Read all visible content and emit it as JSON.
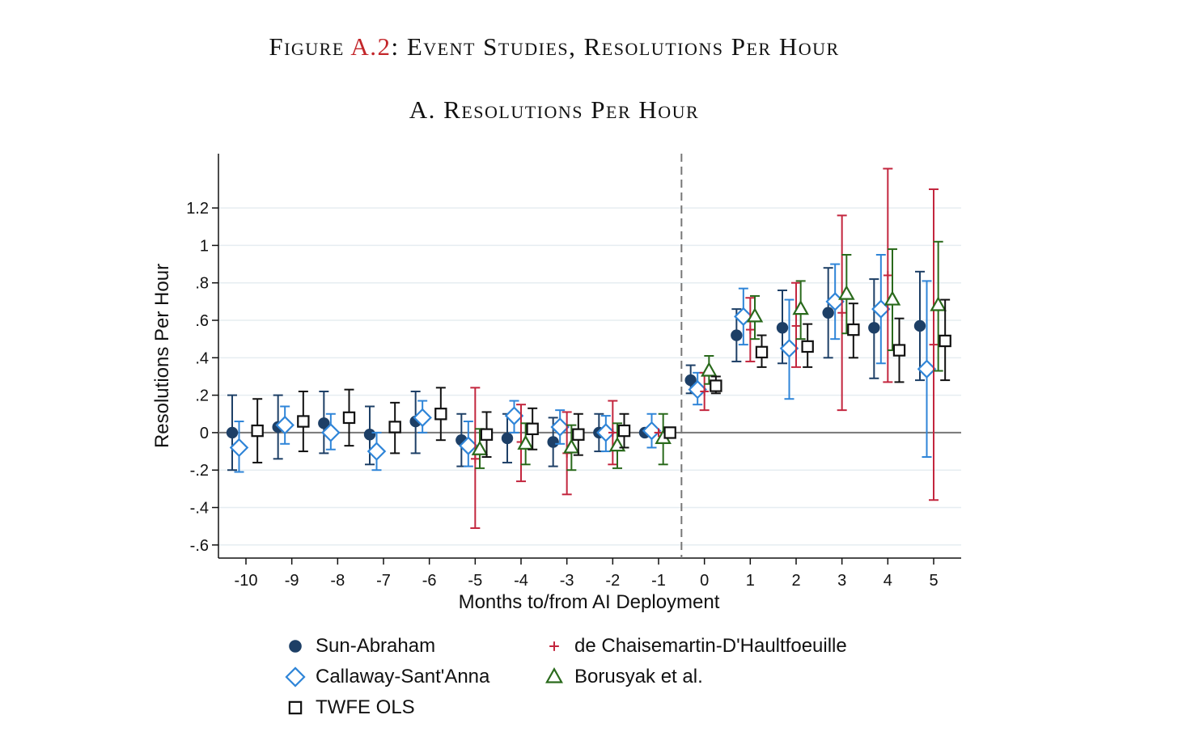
{
  "figure": {
    "prefix": "Figure ",
    "number": "A.2",
    "suffix": ": Event Studies, Resolutions Per Hour",
    "panel_title": "A. Resolutions Per Hour"
  },
  "chart_data": {
    "type": "scatter",
    "xlabel": "Months to/from AI Deployment",
    "ylabel": "Resolutions Per Hour",
    "x_ticks": [
      -10,
      -9,
      -8,
      -7,
      -6,
      -5,
      -4,
      -3,
      -2,
      -1,
      0,
      1,
      2,
      3,
      4,
      5
    ],
    "y_ticks": [
      1.2,
      1,
      0.8,
      0.6,
      0.4,
      0.2,
      0,
      -0.2,
      -0.4,
      -0.6
    ],
    "y_tick_labels": [
      "1.2",
      "1",
      ".8",
      ".6",
      ".4",
      ".2",
      "0",
      "-.2",
      "-.4",
      "-.6"
    ],
    "xlim": [
      -10.6,
      5.6
    ],
    "ylim": [
      -0.67,
      1.49
    ],
    "grid": true,
    "legend_position": "bottom",
    "reference_line_x": -0.5,
    "series": [
      {
        "name": "Sun-Abraham",
        "marker": "filled-circle",
        "color": "#1d3f66",
        "offset": -0.3,
        "points": [
          {
            "x": -10,
            "y": 0.0,
            "lo": -0.2,
            "hi": 0.2
          },
          {
            "x": -9,
            "y": 0.03,
            "lo": -0.14,
            "hi": 0.2
          },
          {
            "x": -8,
            "y": 0.05,
            "lo": -0.11,
            "hi": 0.22
          },
          {
            "x": -7,
            "y": -0.01,
            "lo": -0.17,
            "hi": 0.14
          },
          {
            "x": -6,
            "y": 0.06,
            "lo": -0.11,
            "hi": 0.22
          },
          {
            "x": -5,
            "y": -0.04,
            "lo": -0.18,
            "hi": 0.1
          },
          {
            "x": -4,
            "y": -0.03,
            "lo": -0.16,
            "hi": 0.1
          },
          {
            "x": -3,
            "y": -0.05,
            "lo": -0.18,
            "hi": 0.08
          },
          {
            "x": -2,
            "y": 0.0,
            "lo": -0.1,
            "hi": 0.1
          },
          {
            "x": -1,
            "y": 0.0,
            "lo": 0.0,
            "hi": 0.0
          },
          {
            "x": 0,
            "y": 0.28,
            "lo": 0.21,
            "hi": 0.36
          },
          {
            "x": 1,
            "y": 0.52,
            "lo": 0.38,
            "hi": 0.66
          },
          {
            "x": 2,
            "y": 0.56,
            "lo": 0.37,
            "hi": 0.76
          },
          {
            "x": 3,
            "y": 0.64,
            "lo": 0.4,
            "hi": 0.88
          },
          {
            "x": 4,
            "y": 0.56,
            "lo": 0.29,
            "hi": 0.82
          },
          {
            "x": 5,
            "y": 0.57,
            "lo": 0.28,
            "hi": 0.86
          }
        ]
      },
      {
        "name": "Callaway-Sant'Anna",
        "marker": "hollow-diamond",
        "color": "#2f85d8",
        "offset": -0.15,
        "points": [
          {
            "x": -10,
            "y": -0.08,
            "lo": -0.21,
            "hi": 0.06
          },
          {
            "x": -9,
            "y": 0.04,
            "lo": -0.06,
            "hi": 0.14
          },
          {
            "x": -8,
            "y": 0.0,
            "lo": -0.09,
            "hi": 0.1
          },
          {
            "x": -7,
            "y": -0.1,
            "lo": -0.2,
            "hi": 0.0
          },
          {
            "x": -6,
            "y": 0.08,
            "lo": 0.0,
            "hi": 0.17
          },
          {
            "x": -5,
            "y": -0.07,
            "lo": -0.18,
            "hi": 0.06
          },
          {
            "x": -4,
            "y": 0.09,
            "lo": 0.0,
            "hi": 0.17
          },
          {
            "x": -3,
            "y": 0.03,
            "lo": -0.06,
            "hi": 0.12
          },
          {
            "x": -2,
            "y": 0.0,
            "lo": -0.1,
            "hi": 0.09
          },
          {
            "x": -1,
            "y": 0.01,
            "lo": -0.08,
            "hi": 0.1
          },
          {
            "x": 0,
            "y": 0.23,
            "lo": 0.15,
            "hi": 0.32
          },
          {
            "x": 1,
            "y": 0.62,
            "lo": 0.47,
            "hi": 0.77
          },
          {
            "x": 2,
            "y": 0.45,
            "lo": 0.18,
            "hi": 0.71
          },
          {
            "x": 3,
            "y": 0.7,
            "lo": 0.5,
            "hi": 0.9
          },
          {
            "x": 4,
            "y": 0.66,
            "lo": 0.37,
            "hi": 0.95
          },
          {
            "x": 5,
            "y": 0.34,
            "lo": -0.13,
            "hi": 0.81
          }
        ]
      },
      {
        "name": "de Chaisemartin-D'Haultfoeuille",
        "marker": "plus",
        "color": "#c3263e",
        "offset": 0.0,
        "points": [
          {
            "x": -5,
            "y": -0.14,
            "lo": -0.51,
            "hi": 0.24
          },
          {
            "x": -4,
            "y": -0.05,
            "lo": -0.26,
            "hi": 0.15
          },
          {
            "x": -3,
            "y": -0.11,
            "lo": -0.33,
            "hi": 0.11
          },
          {
            "x": -2,
            "y": 0.0,
            "lo": -0.17,
            "hi": 0.17
          },
          {
            "x": -1,
            "y": 0.0,
            "lo": 0.0,
            "hi": 0.0
          },
          {
            "x": 0,
            "y": 0.22,
            "lo": 0.12,
            "hi": 0.32
          },
          {
            "x": 1,
            "y": 0.55,
            "lo": 0.38,
            "hi": 0.72
          },
          {
            "x": 2,
            "y": 0.57,
            "lo": 0.35,
            "hi": 0.8
          },
          {
            "x": 3,
            "y": 0.64,
            "lo": 0.12,
            "hi": 1.16
          },
          {
            "x": 4,
            "y": 0.84,
            "lo": 0.27,
            "hi": 1.41
          },
          {
            "x": 5,
            "y": 0.47,
            "lo": -0.36,
            "hi": 1.3
          }
        ]
      },
      {
        "name": "Borusyak et al.",
        "marker": "hollow-triangle",
        "color": "#2a6a1c",
        "offset": 0.1,
        "points": [
          {
            "x": -5,
            "y": -0.09,
            "lo": -0.19,
            "hi": 0.02
          },
          {
            "x": -4,
            "y": -0.06,
            "lo": -0.17,
            "hi": 0.05
          },
          {
            "x": -3,
            "y": -0.08,
            "lo": -0.2,
            "hi": 0.04
          },
          {
            "x": -2,
            "y": -0.07,
            "lo": -0.19,
            "hi": 0.05
          },
          {
            "x": -1,
            "y": -0.03,
            "lo": -0.17,
            "hi": 0.1
          },
          {
            "x": 0,
            "y": 0.33,
            "lo": 0.26,
            "hi": 0.41
          },
          {
            "x": 1,
            "y": 0.62,
            "lo": 0.5,
            "hi": 0.73
          },
          {
            "x": 2,
            "y": 0.66,
            "lo": 0.5,
            "hi": 0.81
          },
          {
            "x": 3,
            "y": 0.74,
            "lo": 0.53,
            "hi": 0.95
          },
          {
            "x": 4,
            "y": 0.71,
            "lo": 0.44,
            "hi": 0.98
          },
          {
            "x": 5,
            "y": 0.68,
            "lo": 0.33,
            "hi": 1.02
          }
        ]
      },
      {
        "name": "TWFE OLS",
        "marker": "hollow-square",
        "color": "#111111",
        "offset": 0.25,
        "points": [
          {
            "x": -10,
            "y": 0.01,
            "lo": -0.16,
            "hi": 0.18
          },
          {
            "x": -9,
            "y": 0.06,
            "lo": -0.1,
            "hi": 0.22
          },
          {
            "x": -8,
            "y": 0.08,
            "lo": -0.07,
            "hi": 0.23
          },
          {
            "x": -7,
            "y": 0.03,
            "lo": -0.11,
            "hi": 0.16
          },
          {
            "x": -6,
            "y": 0.1,
            "lo": -0.04,
            "hi": 0.24
          },
          {
            "x": -5,
            "y": -0.01,
            "lo": -0.13,
            "hi": 0.11
          },
          {
            "x": -4,
            "y": 0.02,
            "lo": -0.09,
            "hi": 0.13
          },
          {
            "x": -3,
            "y": -0.01,
            "lo": -0.12,
            "hi": 0.1
          },
          {
            "x": -2,
            "y": 0.01,
            "lo": -0.08,
            "hi": 0.1
          },
          {
            "x": -1,
            "y": 0.0,
            "lo": 0.0,
            "hi": 0.0
          },
          {
            "x": 0,
            "y": 0.25,
            "lo": 0.21,
            "hi": 0.3
          },
          {
            "x": 1,
            "y": 0.43,
            "lo": 0.35,
            "hi": 0.52
          },
          {
            "x": 2,
            "y": 0.46,
            "lo": 0.35,
            "hi": 0.58
          },
          {
            "x": 3,
            "y": 0.55,
            "lo": 0.4,
            "hi": 0.69
          },
          {
            "x": 4,
            "y": 0.44,
            "lo": 0.27,
            "hi": 0.61
          },
          {
            "x": 5,
            "y": 0.49,
            "lo": 0.28,
            "hi": 0.71
          }
        ]
      }
    ]
  },
  "legend": [
    {
      "label": "Sun-Abraham",
      "marker": "filled-circle",
      "color": "#1d3f66"
    },
    {
      "label": "de Chaisemartin-D'Haultfoeuille",
      "marker": "plus",
      "color": "#c3263e"
    },
    {
      "label": "Callaway-Sant'Anna",
      "marker": "hollow-diamond",
      "color": "#2f85d8"
    },
    {
      "label": "Borusyak et al.",
      "marker": "hollow-triangle",
      "color": "#2a6a1c"
    },
    {
      "label": "TWFE OLS",
      "marker": "hollow-square",
      "color": "#111111"
    }
  ]
}
